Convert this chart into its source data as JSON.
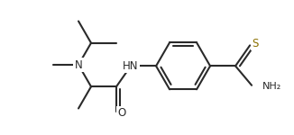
{
  "bg_color": "#ffffff",
  "line_color": "#2a2a2a",
  "S_color": "#8B7000",
  "line_width": 1.5,
  "fig_width": 3.26,
  "fig_height": 1.5,
  "font_size": 8.5,
  "xlim": [
    0,
    326
  ],
  "ylim": [
    0,
    150
  ]
}
